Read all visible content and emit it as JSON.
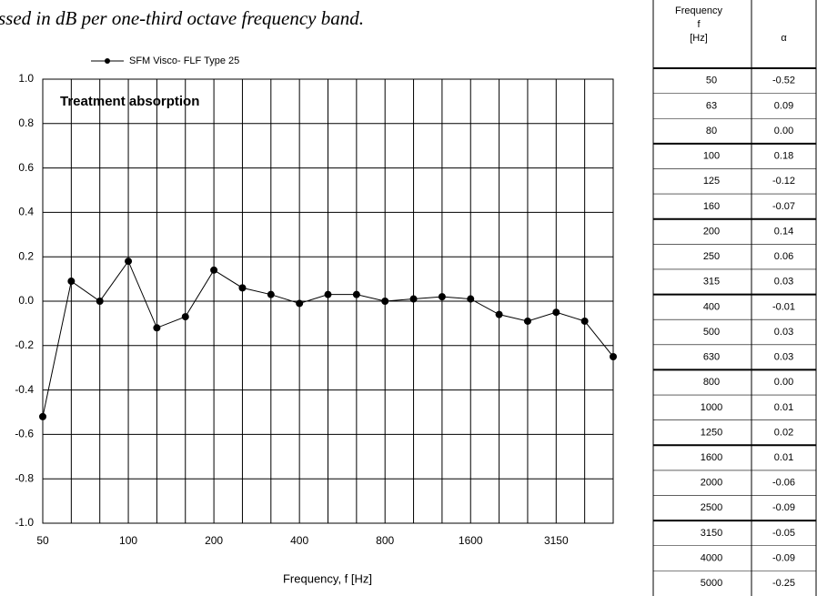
{
  "caption": "ssed in dB per one-third octave frequency band.",
  "chart_data": {
    "type": "line",
    "annotation": "Treatment absorption",
    "x_label": "Frequency, f [Hz]",
    "categories": [
      50,
      null,
      null,
      100,
      null,
      null,
      200,
      null,
      null,
      400,
      null,
      null,
      800,
      null,
      null,
      1600,
      null,
      null,
      3150,
      null,
      null
    ],
    "series": [
      {
        "name": "SFM Visco- FLF Type 25",
        "color": "#000000",
        "values": [
          -0.52,
          0.09,
          0.0,
          0.18,
          -0.12,
          -0.07,
          0.14,
          0.06,
          0.03,
          -0.01,
          0.03,
          0.03,
          0.0,
          0.01,
          0.02,
          0.01,
          -0.06,
          -0.09,
          -0.05,
          -0.09,
          -0.25
        ]
      }
    ],
    "ylim": [
      -1,
      1
    ],
    "yticks": [
      {
        "value": 1,
        "label": "1.0"
      },
      {
        "value": 0.8,
        "label": "0.8"
      },
      {
        "value": 0.6,
        "label": "0.6"
      },
      {
        "value": 0.4,
        "label": "0.4"
      },
      {
        "value": 0.2,
        "label": "0.2"
      },
      {
        "value": 0,
        "label": "0.0"
      },
      {
        "value": -0.2,
        "label": "-0.2"
      },
      {
        "value": -0.4,
        "label": "-0.4"
      },
      {
        "value": -0.6,
        "label": "-0.6"
      },
      {
        "value": -0.8,
        "label": "-0.8"
      },
      {
        "value": -1,
        "label": "-1.0"
      }
    ],
    "grid": true
  },
  "table": {
    "header": {
      "frequency": [
        "Frequency",
        "f",
        "[Hz]"
      ],
      "alpha": "α"
    },
    "rows": [
      [
        "50",
        "-0.52"
      ],
      [
        "63",
        "0.09"
      ],
      [
        "80",
        "0.00"
      ],
      [
        "100",
        "0.18"
      ],
      [
        "125",
        "-0.12"
      ],
      [
        "160",
        "-0.07"
      ],
      [
        "200",
        "0.14"
      ],
      [
        "250",
        "0.06"
      ],
      [
        "315",
        "0.03"
      ],
      [
        "400",
        "-0.01"
      ],
      [
        "500",
        "0.03"
      ],
      [
        "630",
        "0.03"
      ],
      [
        "800",
        "0.00"
      ],
      [
        "1000",
        "0.01"
      ],
      [
        "1250",
        "0.02"
      ],
      [
        "1600",
        "0.01"
      ],
      [
        "2000",
        "-0.06"
      ],
      [
        "2500",
        "-0.09"
      ],
      [
        "3150",
        "-0.05"
      ],
      [
        "4000",
        "-0.09"
      ],
      [
        "5000",
        "-0.25"
      ]
    ]
  }
}
